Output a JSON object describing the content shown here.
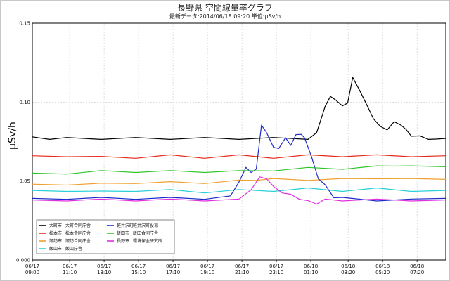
{
  "chart_data": {
    "type": "line",
    "title": "長野県 空間線量率グラフ",
    "subtitle": "最新データ:2014/06/18 09:20 単位:μSv/h",
    "ylabel": "μSv/h",
    "ylim": [
      0,
      0.15
    ],
    "yticks": [
      "0.000",
      "0.05",
      "0.10",
      "0.15"
    ],
    "xlim": [
      0,
      24
    ],
    "xticks": [
      {
        "x": 0,
        "top": "06/17",
        "bottom": "09:00"
      },
      {
        "x": 2.1667,
        "top": "06/17",
        "bottom": "11:10"
      },
      {
        "x": 4.1667,
        "top": "06/17",
        "bottom": "13:10"
      },
      {
        "x": 6.1667,
        "top": "06/17",
        "bottom": "15:10"
      },
      {
        "x": 8.1667,
        "top": "06/17",
        "bottom": "17:10"
      },
      {
        "x": 10.1667,
        "top": "06/17",
        "bottom": "19:10"
      },
      {
        "x": 12.1667,
        "top": "06/17",
        "bottom": "21:10"
      },
      {
        "x": 14.1667,
        "top": "06/17",
        "bottom": "23:10"
      },
      {
        "x": 16.1667,
        "top": "06/18",
        "bottom": "01:10"
      },
      {
        "x": 18.3333,
        "top": "06/18",
        "bottom": "03:20"
      },
      {
        "x": 20.3333,
        "top": "06/18",
        "bottom": "05:20"
      },
      {
        "x": 22.3333,
        "top": "06/18",
        "bottom": "07:20"
      }
    ],
    "grid": true,
    "legend_position": "bottom-left",
    "legend": [
      {
        "city": "大町市",
        "site": "大町合同庁舎",
        "color": "#000000"
      },
      {
        "city": "松本市",
        "site": "松本合同庁舎",
        "color": "#e52b1c"
      },
      {
        "city": "諏訪市",
        "site": "諏訪合同庁舎",
        "color": "#f0a030"
      },
      {
        "city": "飯山市",
        "site": "飯山庁舎",
        "color": "#28d0d8"
      },
      {
        "city": "軽井沢町",
        "site": "軽井沢町役場",
        "color": "#1c2ac8"
      },
      {
        "city": "飯田市",
        "site": "飯田合同庁舎",
        "color": "#2fc62a"
      },
      {
        "city": "長野市",
        "site": "環境保全研究所",
        "color": "#e030e0"
      }
    ],
    "series": [
      {
        "name": "大町市 大町合同庁舎",
        "color": "#000000",
        "x": [
          0,
          1,
          2,
          4,
          6,
          8,
          10,
          12,
          14,
          16,
          16.5,
          17,
          17.3,
          17.6,
          18,
          18.3,
          18.6,
          19,
          19.4,
          19.8,
          20.2,
          20.6,
          21.0,
          21.4,
          21.7,
          22,
          22.5,
          23,
          23.5,
          24
        ],
        "y": [
          0.078,
          0.077,
          0.077,
          0.077,
          0.077,
          0.077,
          0.077,
          0.077,
          0.077,
          0.077,
          0.08,
          0.098,
          0.103,
          0.102,
          0.097,
          0.1,
          0.115,
          0.108,
          0.098,
          0.09,
          0.084,
          0.083,
          0.087,
          0.086,
          0.082,
          0.079,
          0.078,
          0.077,
          0.076,
          0.077
        ]
      },
      {
        "name": "松本市 松本合同庁舎",
        "color": "#e52b1c",
        "x": [
          0,
          2,
          4,
          6,
          8,
          10,
          12,
          14,
          16,
          18,
          20,
          22,
          24
        ],
        "y": [
          0.066,
          0.066,
          0.065,
          0.065,
          0.066,
          0.065,
          0.066,
          0.065,
          0.066,
          0.066,
          0.066,
          0.066,
          0.066
        ]
      },
      {
        "name": "諏訪市 諏訪合同庁舎",
        "color": "#f0a030",
        "x": [
          0,
          2,
          4,
          6,
          8,
          10,
          12,
          13,
          14,
          16,
          18,
          20,
          22,
          24
        ],
        "y": [
          0.048,
          0.048,
          0.048,
          0.049,
          0.049,
          0.049,
          0.05,
          0.051,
          0.051,
          0.051,
          0.051,
          0.052,
          0.051,
          0.051
        ]
      },
      {
        "name": "飯山市 飯山庁舎",
        "color": "#28d0d8",
        "x": [
          0,
          2,
          4,
          6,
          8,
          10,
          12,
          14,
          16,
          18,
          20,
          22,
          24
        ],
        "y": [
          0.044,
          0.044,
          0.043,
          0.044,
          0.044,
          0.043,
          0.044,
          0.044,
          0.045,
          0.044,
          0.045,
          0.044,
          0.044
        ]
      },
      {
        "name": "軽井沢町 軽井沢町役場",
        "color": "#1c2ac8",
        "x": [
          0,
          2,
          4,
          6,
          8,
          10,
          11.5,
          12,
          12.4,
          12.7,
          13,
          13.3,
          13.6,
          14,
          14.3,
          14.7,
          15,
          15.3,
          15.6,
          15.8,
          16.2,
          16.6,
          17,
          17.5,
          18,
          20,
          22,
          24
        ],
        "y": [
          0.039,
          0.039,
          0.039,
          0.039,
          0.039,
          0.039,
          0.04,
          0.05,
          0.058,
          0.056,
          0.057,
          0.086,
          0.08,
          0.072,
          0.07,
          0.078,
          0.072,
          0.08,
          0.079,
          0.078,
          0.065,
          0.052,
          0.047,
          0.04,
          0.039,
          0.038,
          0.038,
          0.039
        ]
      },
      {
        "name": "飯田市 飯田合同庁舎",
        "color": "#2fc62a",
        "x": [
          0,
          2,
          4,
          6,
          8,
          10,
          12,
          14,
          16,
          18,
          20,
          21,
          22,
          24
        ],
        "y": [
          0.055,
          0.055,
          0.056,
          0.056,
          0.056,
          0.056,
          0.056,
          0.057,
          0.058,
          0.058,
          0.059,
          0.06,
          0.059,
          0.059
        ]
      },
      {
        "name": "長野市 環境保全研究所",
        "color": "#e030e0",
        "x": [
          0,
          2,
          4,
          6,
          8,
          10,
          12,
          12.7,
          13.2,
          13.6,
          14,
          14.5,
          15,
          15.5,
          16,
          16.5,
          17,
          18,
          20,
          22,
          24
        ],
        "y": [
          0.038,
          0.038,
          0.038,
          0.038,
          0.038,
          0.038,
          0.038,
          0.045,
          0.052,
          0.052,
          0.046,
          0.043,
          0.041,
          0.039,
          0.037,
          0.036,
          0.038,
          0.038,
          0.038,
          0.038,
          0.038
        ]
      }
    ]
  }
}
